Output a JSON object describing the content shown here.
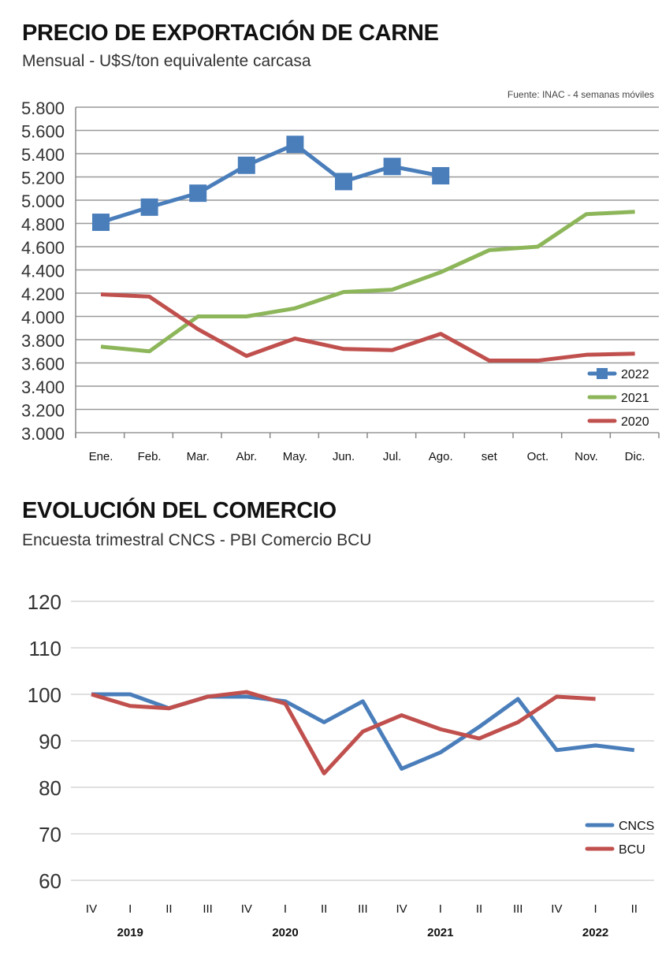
{
  "chart_data": [
    {
      "type": "line",
      "title": "PRECIO DE EXPORTACIÓN DE CARNE",
      "subtitle": "Mensual - U$S/ton equivalente carcasa",
      "source": "Fuente: INAC - 4 semanas móviles",
      "categories": [
        "Ene.",
        "Feb.",
        "Mar.",
        "Abr.",
        "May.",
        "Jun.",
        "Jul.",
        "Ago.",
        "set",
        "Oct.",
        "Nov.",
        "Dic."
      ],
      "ylim": [
        3000,
        5800
      ],
      "yticks": [
        3000,
        3200,
        3400,
        3600,
        3800,
        4000,
        4200,
        4400,
        4600,
        4800,
        5000,
        5200,
        5400,
        5600,
        5800
      ],
      "ytick_labels": [
        "3.000",
        "3.200",
        "3.400",
        "3.600",
        "3.800",
        "4.000",
        "4.200",
        "4.400",
        "4.600",
        "4.800",
        "5.000",
        "5.200",
        "5.400",
        "5.600",
        "5.800"
      ],
      "grid": true,
      "legend_position": "bottom-right",
      "series": [
        {
          "name": "2022",
          "color": "#4a7ebb",
          "marker": "square",
          "values": [
            4810,
            4940,
            5060,
            5300,
            5480,
            5160,
            5290,
            5210,
            null,
            null,
            null,
            null
          ]
        },
        {
          "name": "2021",
          "color": "#8db65a",
          "marker": "none",
          "values": [
            3740,
            3700,
            4000,
            4000,
            4070,
            4210,
            4230,
            4380,
            4570,
            4600,
            4880,
            4900
          ]
        },
        {
          "name": "2020",
          "color": "#c0504d",
          "marker": "none",
          "values": [
            4190,
            4170,
            3890,
            3660,
            3810,
            3720,
            3710,
            3850,
            3620,
            3620,
            3670,
            3680
          ]
        }
      ]
    },
    {
      "type": "line",
      "title": "EVOLUCIÓN DEL COMERCIO",
      "subtitle": "Encuesta trimestral CNCS - PBI Comercio BCU",
      "categories": [
        "IV",
        "I",
        "II",
        "III",
        "IV",
        "I",
        "II",
        "III",
        "IV",
        "I",
        "II",
        "III",
        "IV",
        "I",
        "II"
      ],
      "year_labels": [
        {
          "label": "2019",
          "index": 1
        },
        {
          "label": "2020",
          "index": 5
        },
        {
          "label": "2021",
          "index": 9
        },
        {
          "label": "2022",
          "index": 13
        }
      ],
      "ylim": [
        60,
        120
      ],
      "yticks": [
        60,
        70,
        80,
        90,
        100,
        110,
        120
      ],
      "ytick_labels": [
        "60",
        "70",
        "80",
        "90",
        "100",
        "110",
        "120"
      ],
      "grid": true,
      "legend_position": "bottom-right",
      "series": [
        {
          "name": "CNCS",
          "color": "#4a7ebb",
          "values": [
            100,
            100,
            97,
            99.5,
            99.5,
            98.5,
            94,
            98.5,
            84,
            87.5,
            93,
            99,
            88,
            89,
            88
          ]
        },
        {
          "name": "BCU",
          "color": "#c0504d",
          "values": [
            100,
            97.5,
            97,
            99.5,
            100.5,
            98,
            83,
            92,
            95.5,
            92.5,
            90.5,
            94,
            99.5,
            99,
            null
          ]
        }
      ]
    }
  ]
}
